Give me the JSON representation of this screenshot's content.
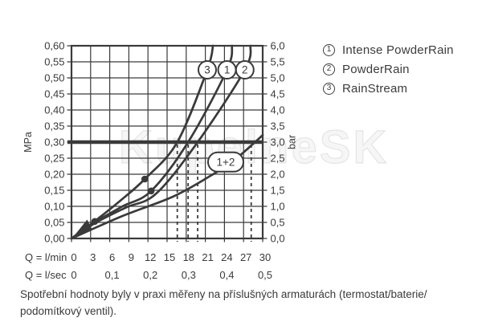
{
  "colors": {
    "ink": "#3a3a3a",
    "background": "#ffffff"
  },
  "watermark": "KupelneSK",
  "legend": {
    "items": [
      {
        "symbol": "1",
        "label": "Intense PowderRain"
      },
      {
        "symbol": "2",
        "label": "PowderRain"
      },
      {
        "symbol": "3",
        "label": "RainStream"
      }
    ]
  },
  "caption": {
    "line1": "Spotřební hodnoty byly v praxi měřeny na příslušných armaturách (termostat/baterie/",
    "line2": "podomítkový ventil)."
  },
  "chart_data": {
    "type": "line",
    "title": "",
    "grid": "on",
    "x_axis": {
      "row1_label": "Q = l/min",
      "ticks_lmin": [
        "0",
        "3",
        "6",
        "9",
        "12",
        "15",
        "18",
        "21",
        "24",
        "27",
        "30"
      ],
      "row2_label": "Q = l/sec",
      "ticks_lsec": [
        "0",
        "0,1",
        "0,2",
        "0,3",
        "0,4",
        "0,5"
      ],
      "range": [
        0,
        30
      ]
    },
    "y_axis_left": {
      "label": "MPa",
      "ticks": [
        "0,60",
        "0,55",
        "0,50",
        "0,45",
        "0,40",
        "0,35",
        "0,30",
        "0,25",
        "0,20",
        "0,15",
        "0,10",
        "0,05",
        "0,00"
      ],
      "range": [
        0,
        0.6
      ]
    },
    "y_axis_right": {
      "label": "bar",
      "ticks": [
        "6,0",
        "5,5",
        "5,0",
        "4,5",
        "4,0",
        "3,5",
        "3,0",
        "2,5",
        "2,0",
        "1,5",
        "1,0",
        "0,5",
        "0,0"
      ],
      "range": [
        0,
        6
      ]
    },
    "reference_line": {
      "value_mpa": 0.3,
      "value_bar": 3.0
    },
    "dashed_guides_lmin": [
      16.6,
      18.3,
      19.8,
      28.2
    ],
    "series": [
      {
        "id": "3",
        "name": "RainStream",
        "points_lmin_mpa": [
          [
            0,
            0
          ],
          [
            3.6,
            0.053
          ],
          [
            7.5,
            0.115
          ],
          [
            11.5,
            0.185
          ],
          [
            16.6,
            0.3
          ],
          [
            21.3,
            0.525
          ],
          [
            22.2,
            0.6
          ]
        ]
      },
      {
        "id": "1",
        "name": "Intense PowderRain",
        "points_lmin_mpa": [
          [
            0,
            0
          ],
          [
            3.7,
            0.051
          ],
          [
            8,
            0.1
          ],
          [
            12.5,
            0.148
          ],
          [
            18.3,
            0.3
          ],
          [
            24.4,
            0.525
          ],
          [
            25.2,
            0.6
          ]
        ]
      },
      {
        "id": "2",
        "name": "PowderRain",
        "points_lmin_mpa": [
          [
            0,
            0
          ],
          [
            3.8,
            0.049
          ],
          [
            8.5,
            0.096
          ],
          [
            13.3,
            0.14
          ],
          [
            19.8,
            0.3
          ],
          [
            27.2,
            0.525
          ],
          [
            28.1,
            0.6
          ]
        ]
      },
      {
        "id": "1+2",
        "name": "Intense PowderRain + PowderRain",
        "points_lmin_mpa": [
          [
            0,
            0
          ],
          [
            8,
            0.07
          ],
          [
            15.9,
            0.13
          ],
          [
            21.8,
            0.195
          ],
          [
            25.3,
            0.24
          ],
          [
            28.8,
            0.3
          ],
          [
            30,
            0.322
          ]
        ]
      }
    ],
    "markers_lmin_mpa": [
      [
        3.65,
        0.053
      ],
      [
        11.5,
        0.185
      ],
      [
        12.5,
        0.148
      ]
    ],
    "curve_labels": [
      {
        "text": "3",
        "q": 21.3,
        "mpa": 0.525,
        "shape": "circle"
      },
      {
        "text": "1",
        "q": 24.4,
        "mpa": 0.525,
        "shape": "circle"
      },
      {
        "text": "2",
        "q": 27.2,
        "mpa": 0.525,
        "shape": "circle"
      },
      {
        "text": "1+2",
        "q": 24.2,
        "mpa": 0.238,
        "shape": "pill"
      }
    ]
  }
}
